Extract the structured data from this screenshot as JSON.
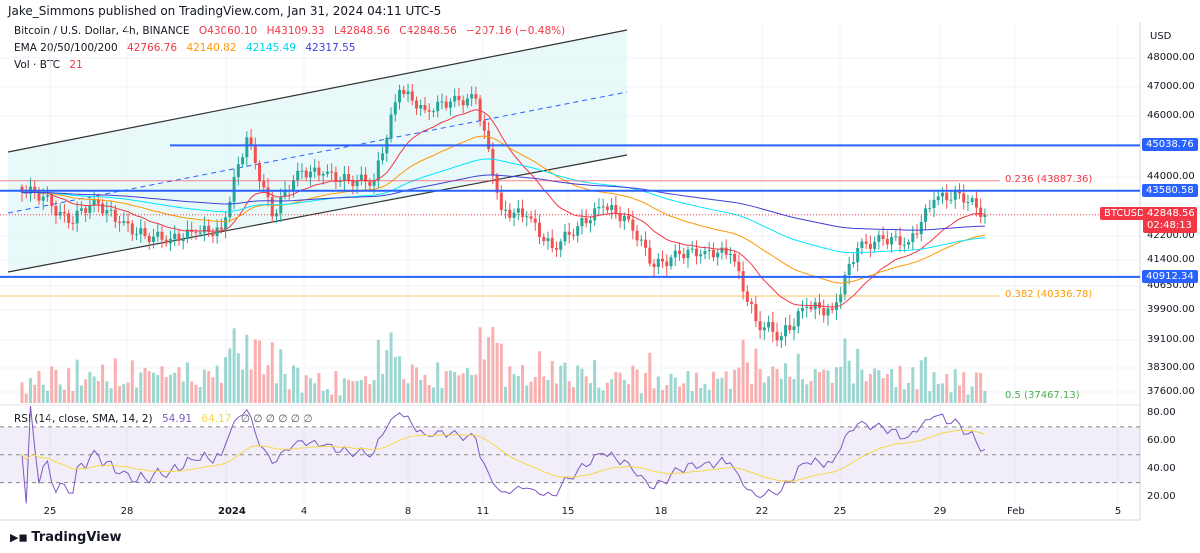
{
  "header": {
    "published": "Jake_Simmons published on TradingView.com, Jan 31, 2024 04:11 UTC-5"
  },
  "legend": {
    "symbol": "Bitcoin / U.S. Dollar, 4h, BINANCE",
    "open": "O43060.10",
    "high": "H43109.33",
    "low": "L42848.56",
    "close": "C42848.56",
    "change": "−207.16 (−0.48%)",
    "ema_label": "EMA 20/50/100/200",
    "ema_values": [
      "42766.76",
      "42140.82",
      "42145.49",
      "42317.55"
    ],
    "vol_label": "Vol · BTC",
    "vol_value": "21",
    "rsi_label": "RSI (14, close, SMA, 14, 2)",
    "rsi_value": "54.91",
    "rsi_sma": "64.17",
    "rsi_extra": "∅ ∅ ∅ ∅ ∅ ∅"
  },
  "colors": {
    "up": "#26a69a",
    "down": "#ef5350",
    "ema20": "#f23645",
    "ema50": "#ff9800",
    "ema100": "#00e5ff",
    "ema200": "#3f3fd8",
    "hline": "#2962ff",
    "rsi": "#7e57c2",
    "rsi_sma": "#f7d74a"
  },
  "price_axis": {
    "currency": "USD",
    "ticks": [
      "48000.00",
      "47000.00",
      "46000.00",
      "44000.00",
      "42200.00",
      "41400.00",
      "40650.00",
      "39900.00",
      "39100.00",
      "38300.00",
      "37600.00"
    ],
    "tick_values": [
      48000,
      47000,
      46000,
      44000,
      42200,
      41400,
      40650,
      39900,
      39100,
      38300,
      37600
    ]
  },
  "rsi_axis": {
    "ticks": [
      "80.00",
      "60.00",
      "40.00",
      "20.00"
    ]
  },
  "levels": [
    {
      "label": "45038.76",
      "value": 45038.76
    },
    {
      "label": "43580.58",
      "value": 43580.58
    },
    {
      "label": "40912.34",
      "value": 40912.34
    }
  ],
  "fib": [
    {
      "label": "0.236 (43887.36)",
      "value": 43887.36,
      "color": "#f23645"
    },
    {
      "label": "0.382 (40336.78)",
      "value": 40336.78,
      "color": "#ff9800"
    },
    {
      "label": "0.5 (37467.13)",
      "value": 37467.13,
      "color": "#4caf50"
    }
  ],
  "last_price": {
    "symbol": "BTCUSD",
    "price": "42848.56",
    "countdown": "02:48:13"
  },
  "time_axis": [
    "25",
    "28",
    "2024",
    "4",
    "8",
    "11",
    "15",
    "18",
    "22",
    "25",
    "29",
    "Feb",
    "5"
  ],
  "footer": {
    "brand": "TradingView"
  },
  "chart_data": {
    "type": "candlestick",
    "interval": "4h",
    "dates": [
      "Dec 24",
      "Dec 25",
      "Dec 26",
      "Dec 27",
      "Dec 28",
      "Dec 29",
      "Dec 30",
      "Dec 31",
      "Jan 1",
      "Jan 2",
      "Jan 3",
      "Jan 4",
      "Jan 5",
      "Jan 6",
      "Jan 7",
      "Jan 8",
      "Jan 9",
      "Jan 10",
      "Jan 11",
      "Jan 12",
      "Jan 13",
      "Jan 14",
      "Jan 15",
      "Jan 16",
      "Jan 17",
      "Jan 18",
      "Jan 19",
      "Jan 20",
      "Jan 21",
      "Jan 22",
      "Jan 23",
      "Jan 24",
      "Jan 25",
      "Jan 26",
      "Jan 27",
      "Jan 28",
      "Jan 29",
      "Jan 30",
      "Jan 31"
    ],
    "daily_close_approx": [
      43700,
      43400,
      42600,
      43300,
      42600,
      42200,
      42100,
      42300,
      42400,
      45300,
      42800,
      44200,
      44100,
      43900,
      43900,
      46900,
      46200,
      46500,
      46600,
      43000,
      42800,
      41800,
      42500,
      43100,
      42700,
      41200,
      41600,
      41700,
      41600,
      39600,
      39200,
      40000,
      39900,
      41800,
      42100,
      42000,
      43300,
      43500,
      42848.56
    ],
    "ylim": [
      37300,
      49000
    ]
  }
}
